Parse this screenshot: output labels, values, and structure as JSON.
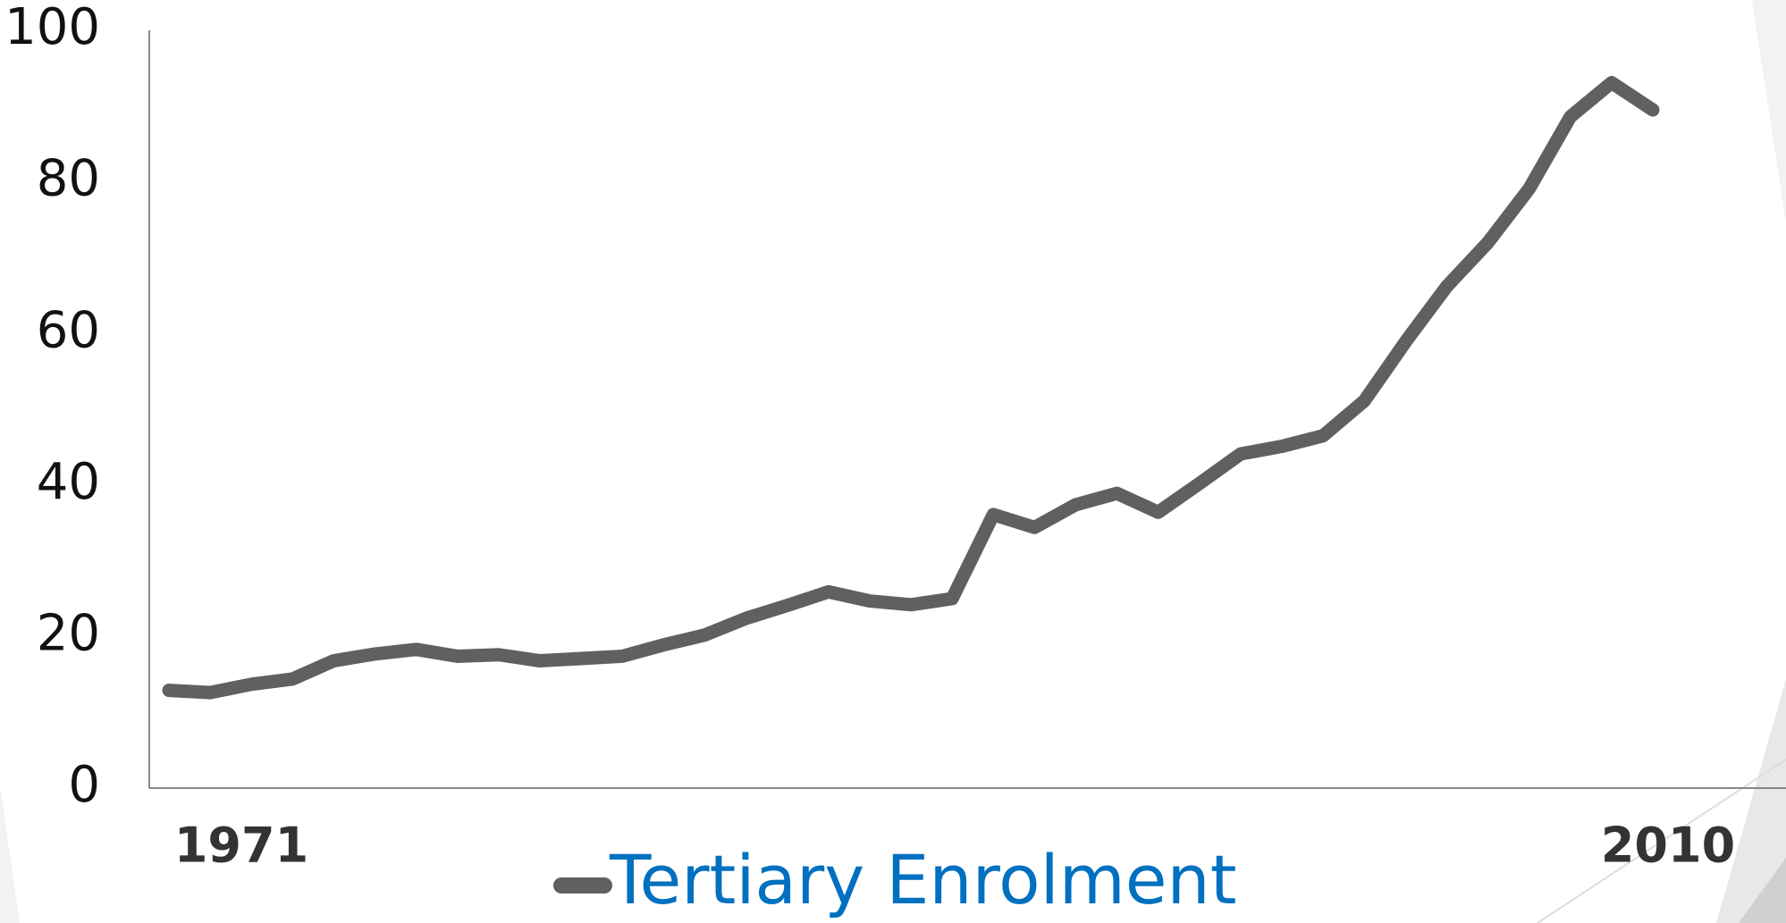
{
  "chart_data": {
    "type": "line",
    "categories": [
      "1971",
      null,
      null,
      null,
      null,
      null,
      null,
      null,
      null,
      null,
      null,
      null,
      null,
      null,
      null,
      null,
      null,
      null,
      null,
      null,
      null,
      null,
      null,
      null,
      null,
      null,
      null,
      null,
      null,
      null,
      null,
      null,
      null,
      null,
      null,
      null,
      "2010"
    ],
    "series": [
      {
        "name": "Tertiary Enrolment",
        "color": "#606060",
        "values": [
          12.9,
          12.6,
          13.7,
          14.4,
          16.8,
          17.7,
          18.3,
          17.4,
          17.6,
          16.8,
          17.1,
          17.4,
          18.9,
          20.2,
          22.4,
          24.1,
          25.9,
          24.7,
          24.2,
          25.0,
          36.1,
          34.4,
          37.4,
          38.9,
          36.4,
          40.2,
          44.1,
          45.1,
          46.5,
          51.1,
          58.9,
          66.2,
          72.0,
          79.1,
          88.6,
          93.1,
          89.5
        ]
      }
    ],
    "ylim": [
      0,
      100
    ],
    "yticks": [
      0,
      20,
      40,
      60,
      80,
      100
    ],
    "legend": "bottom",
    "legend_color": "#0070c0"
  }
}
